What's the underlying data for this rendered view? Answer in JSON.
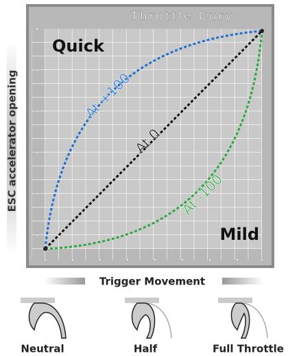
{
  "panel_title": "Throttle Curv",
  "corner_labels": {
    "top_left": "Quick",
    "bottom_right": "Mild"
  },
  "curves": [
    {
      "label": "At +100"
    },
    {
      "label": "At 0"
    },
    {
      "label": "At -100"
    }
  ],
  "y_axis_label": "ESC accelerator opening",
  "x_axis_label": "Trigger Movement",
  "trigger_positions": [
    "Neutral",
    "Half",
    "Full Throttle"
  ]
}
